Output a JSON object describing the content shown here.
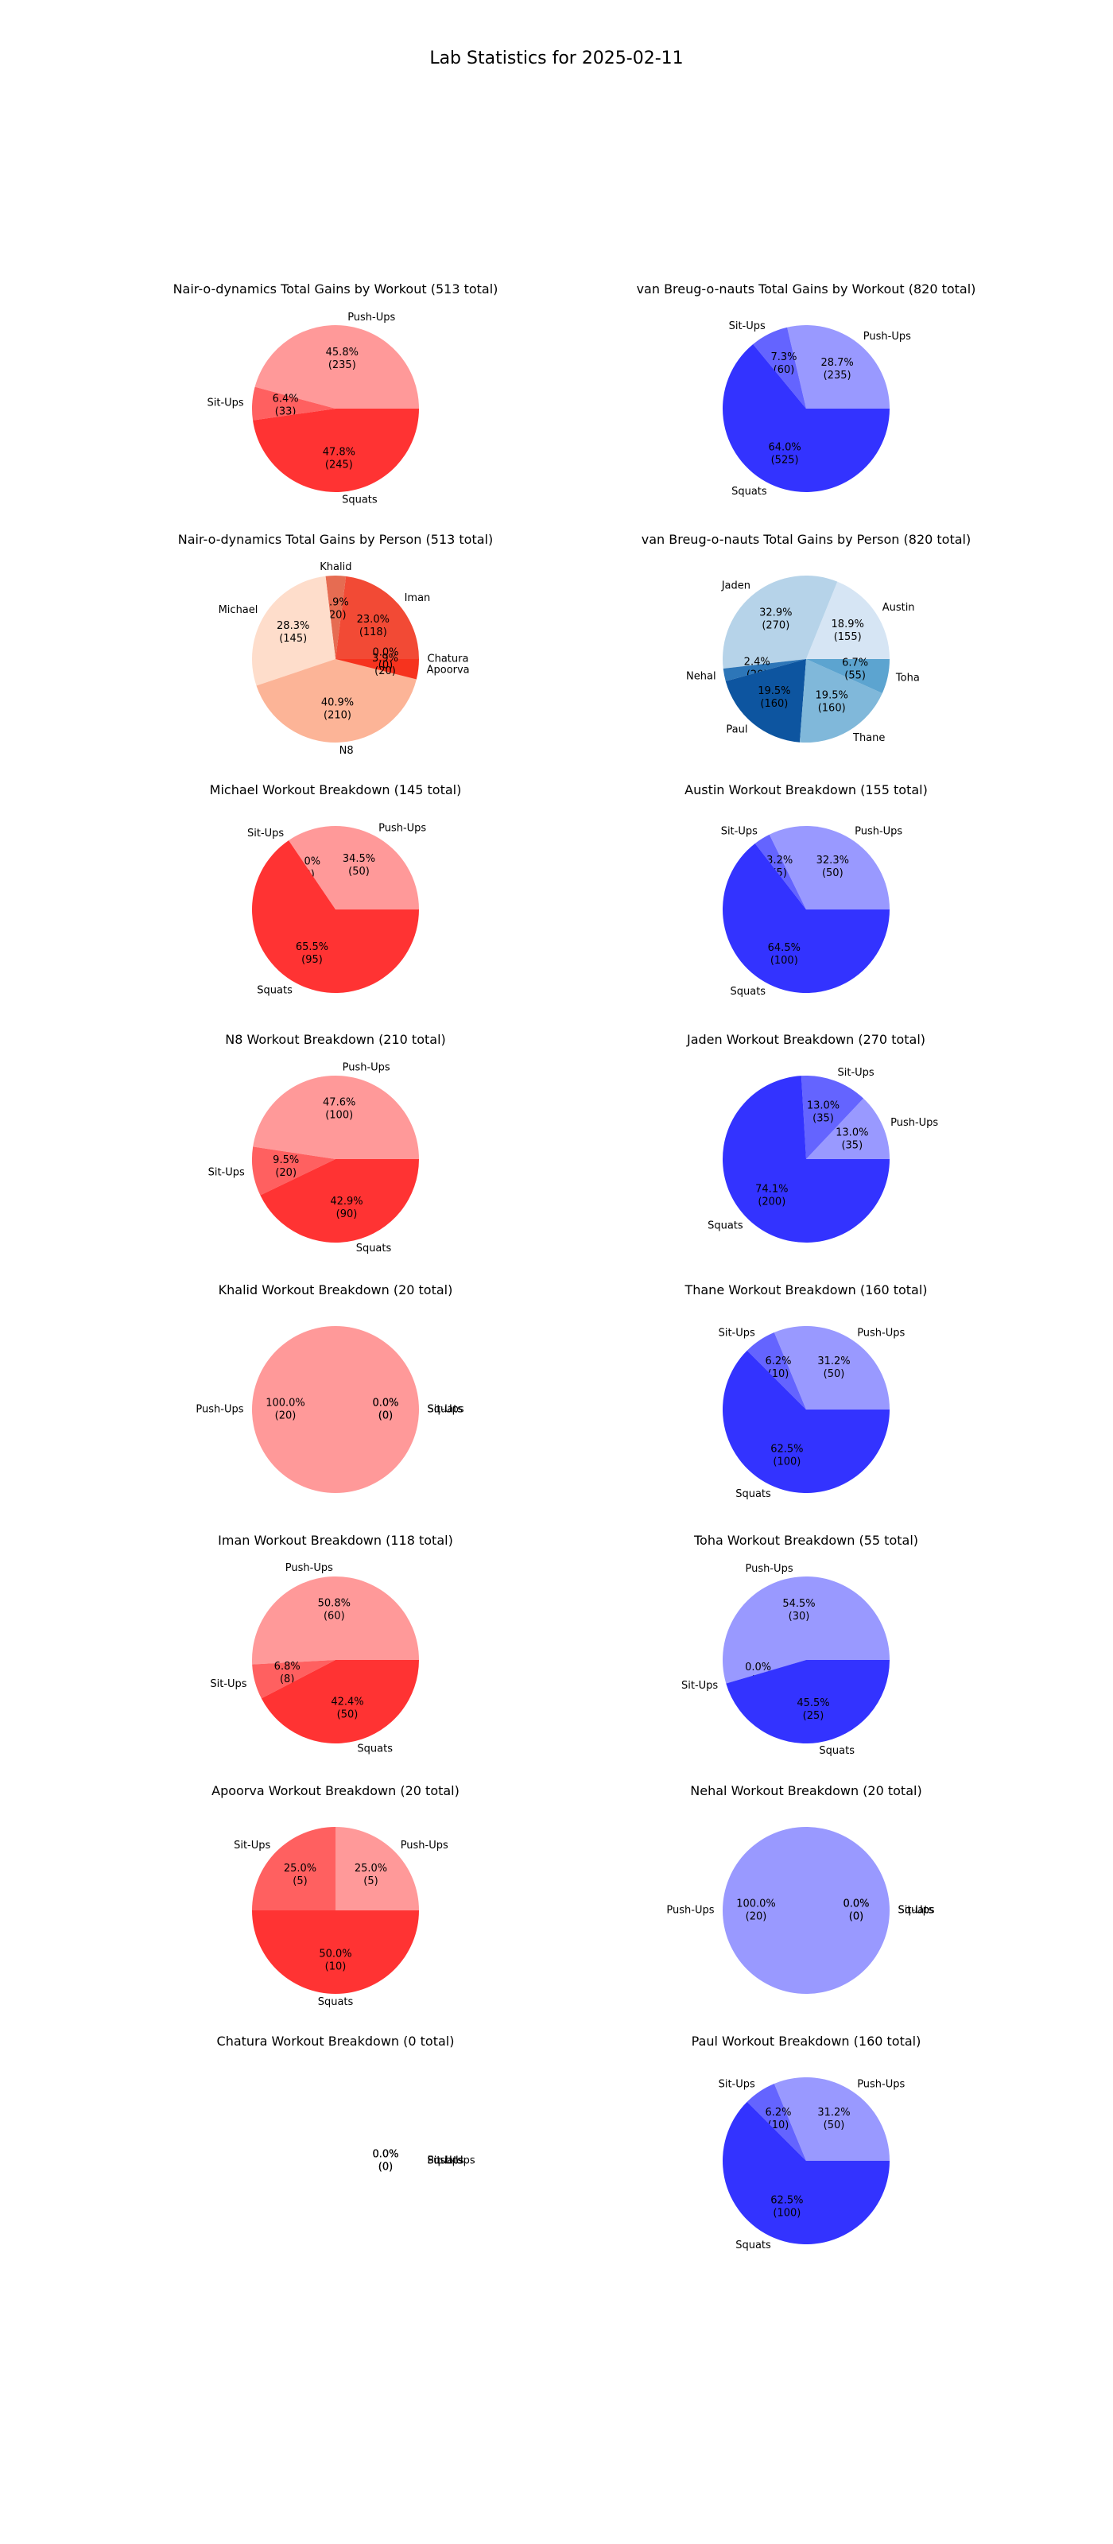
{
  "title": "Lab Statistics for 2025-02-11",
  "colors": {
    "red_pushups": "#ff9999",
    "red_situps": "#ff6060",
    "red_squats": "#ff3333",
    "blue_pushups": "#9999ff",
    "blue_situps": "#6464ff",
    "blue_squats": "#3333ff",
    "nair_people": [
      "#f24a35",
      "#e66c52",
      "#feddcb",
      "#fcb497",
      "#f6331e",
      "#d92523"
    ],
    "vb_people": [
      "#d6e5f4",
      "#b6d3e9",
      "#2d76b8",
      "#0d55a0",
      "#80b8da",
      "#5ca4d0"
    ]
  },
  "chart_data": [
    {
      "type": "pie",
      "title": "Nair-o-dynamics Total Gains by Workout (513 total)",
      "labels": [
        "Push-Ups",
        "Sit-Ups",
        "Squats"
      ],
      "values": [
        235,
        33,
        245
      ],
      "pct": [
        "45.8%",
        "6.4%",
        "47.8%"
      ],
      "colors": [
        "#ff9999",
        "#ff6060",
        "#ff3333"
      ]
    },
    {
      "type": "pie",
      "title": "van Breug-o-nauts Total Gains by Workout (820 total)",
      "labels": [
        "Push-Ups",
        "Sit-Ups",
        "Squats"
      ],
      "values": [
        235,
        60,
        525
      ],
      "pct": [
        "28.7%",
        "7.3%",
        "64.0%"
      ],
      "colors": [
        "#9999ff",
        "#6464ff",
        "#3333ff"
      ]
    },
    {
      "type": "pie",
      "title": "Nair-o-dynamics Total Gains by Person (513 total)",
      "labels": [
        "Iman",
        "Khalid",
        "Michael",
        "N8",
        "Apoorva",
        "Chatura"
      ],
      "values": [
        118,
        20,
        145,
        210,
        20,
        0
      ],
      "pct": [
        "23.0%",
        "3.9%",
        "28.3%",
        "40.9%",
        "3.9%",
        "0.0%"
      ],
      "colors": [
        "#f24a35",
        "#e66c52",
        "#feddcb",
        "#fcb497",
        "#f6331e",
        "#d92523"
      ]
    },
    {
      "type": "pie",
      "title": "van Breug-o-nauts Total Gains by Person (820 total)",
      "labels": [
        "Austin",
        "Jaden",
        "Nehal",
        "Paul",
        "Thane",
        "Toha"
      ],
      "values": [
        155,
        270,
        20,
        160,
        160,
        55
      ],
      "pct": [
        "18.9%",
        "32.9%",
        "2.4%",
        "19.5%",
        "19.5%",
        "6.7%"
      ],
      "colors": [
        "#d6e5f4",
        "#b6d3e9",
        "#2d76b8",
        "#0d55a0",
        "#80b8da",
        "#5ca4d0"
      ]
    },
    {
      "type": "pie",
      "title": "Michael Workout Breakdown (145 total)",
      "labels": [
        "Push-Ups",
        "Sit-Ups",
        "Squats"
      ],
      "values": [
        50,
        0,
        95
      ],
      "pct": [
        "34.5%",
        "0.0%",
        "65.5%"
      ],
      "colors": [
        "#ff9999",
        "#ff6060",
        "#ff3333"
      ]
    },
    {
      "type": "pie",
      "title": "Austin Workout Breakdown (155 total)",
      "labels": [
        "Push-Ups",
        "Sit-Ups",
        "Squats"
      ],
      "values": [
        50,
        5,
        100
      ],
      "pct": [
        "32.3%",
        "3.2%",
        "64.5%"
      ],
      "colors": [
        "#9999ff",
        "#6464ff",
        "#3333ff"
      ]
    },
    {
      "type": "pie",
      "title": "N8 Workout Breakdown (210 total)",
      "labels": [
        "Push-Ups",
        "Sit-Ups",
        "Squats"
      ],
      "values": [
        100,
        20,
        90
      ],
      "pct": [
        "47.6%",
        "9.5%",
        "42.9%"
      ],
      "colors": [
        "#ff9999",
        "#ff6060",
        "#ff3333"
      ]
    },
    {
      "type": "pie",
      "title": "Jaden Workout Breakdown (270 total)",
      "labels": [
        "Push-Ups",
        "Sit-Ups",
        "Squats"
      ],
      "values": [
        35,
        35,
        200
      ],
      "pct": [
        "13.0%",
        "13.0%",
        "74.1%"
      ],
      "colors": [
        "#9999ff",
        "#6464ff",
        "#3333ff"
      ]
    },
    {
      "type": "pie",
      "title": "Khalid Workout Breakdown (20 total)",
      "labels": [
        "Push-Ups",
        "Sit-Ups",
        "Squats"
      ],
      "values": [
        20,
        0,
        0
      ],
      "pct": [
        "100.0%",
        "0.0%",
        "0.0%"
      ],
      "colors": [
        "#ff9999",
        "#ff6060",
        "#ff3333"
      ]
    },
    {
      "type": "pie",
      "title": "Thane Workout Breakdown (160 total)",
      "labels": [
        "Push-Ups",
        "Sit-Ups",
        "Squats"
      ],
      "values": [
        50,
        10,
        100
      ],
      "pct": [
        "31.2%",
        "6.2%",
        "62.5%"
      ],
      "colors": [
        "#9999ff",
        "#6464ff",
        "#3333ff"
      ]
    },
    {
      "type": "pie",
      "title": "Iman Workout Breakdown (118 total)",
      "labels": [
        "Push-Ups",
        "Sit-Ups",
        "Squats"
      ],
      "values": [
        60,
        8,
        50
      ],
      "pct": [
        "50.8%",
        "6.8%",
        "42.4%"
      ],
      "colors": [
        "#ff9999",
        "#ff6060",
        "#ff3333"
      ]
    },
    {
      "type": "pie",
      "title": "Toha Workout Breakdown (55 total)",
      "labels": [
        "Push-Ups",
        "Sit-Ups",
        "Squats"
      ],
      "values": [
        30,
        0,
        25
      ],
      "pct": [
        "54.5%",
        "0.0%",
        "45.5%"
      ],
      "colors": [
        "#9999ff",
        "#6464ff",
        "#3333ff"
      ]
    },
    {
      "type": "pie",
      "title": "Apoorva Workout Breakdown (20 total)",
      "labels": [
        "Push-Ups",
        "Sit-Ups",
        "Squats"
      ],
      "values": [
        5,
        5,
        10
      ],
      "pct": [
        "25.0%",
        "25.0%",
        "50.0%"
      ],
      "colors": [
        "#ff9999",
        "#ff6060",
        "#ff3333"
      ]
    },
    {
      "type": "pie",
      "title": "Nehal Workout Breakdown (20 total)",
      "labels": [
        "Push-Ups",
        "Sit-Ups",
        "Squats"
      ],
      "values": [
        20,
        0,
        0
      ],
      "pct": [
        "100.0%",
        "0.0%",
        "0.0%"
      ],
      "colors": [
        "#9999ff",
        "#6464ff",
        "#3333ff"
      ]
    },
    {
      "type": "pie",
      "title": "Chatura Workout Breakdown (0 total)",
      "labels": [
        "Push-Ups",
        "Sit-Ups",
        "Squats"
      ],
      "values": [
        0,
        0,
        0
      ],
      "pct": [
        "0.0%",
        "0.0%",
        "0.0%"
      ],
      "colors": [
        "#ff9999",
        "#ff6060",
        "#ff3333"
      ]
    },
    {
      "type": "pie",
      "title": "Paul Workout Breakdown (160 total)",
      "labels": [
        "Push-Ups",
        "Sit-Ups",
        "Squats"
      ],
      "values": [
        50,
        10,
        100
      ],
      "pct": [
        "31.2%",
        "6.2%",
        "62.5%"
      ],
      "colors": [
        "#9999ff",
        "#6464ff",
        "#3333ff"
      ]
    }
  ]
}
